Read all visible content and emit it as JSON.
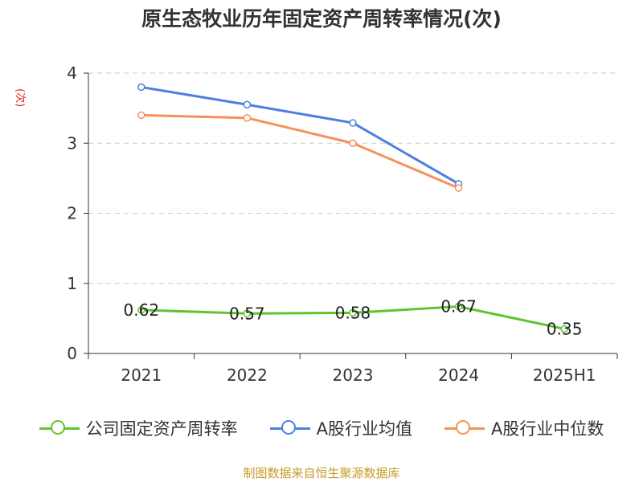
{
  "chart_data": {
    "type": "line",
    "title": "原生态牧业历年固定资产周转率情况(次)",
    "ylabel": "(次)",
    "categories": [
      "2021",
      "2022",
      "2023",
      "2024",
      "2025H1"
    ],
    "ylim": [
      0,
      4
    ],
    "yticks": [
      0,
      1,
      2,
      3,
      4
    ],
    "grid": true,
    "legend_position": "bottom",
    "series": [
      {
        "name": "公司固定资产周转率",
        "color": "#5fc52e",
        "values": [
          0.62,
          0.57,
          0.58,
          0.67,
          0.35
        ],
        "labels": [
          "0.62",
          "0.57",
          "0.58",
          "0.67",
          "0.35"
        ]
      },
      {
        "name": "A股行业均值",
        "color": "#4d7fe0",
        "values": [
          3.8,
          3.55,
          3.29,
          2.42,
          null
        ]
      },
      {
        "name": "A股行业中位数",
        "color": "#f5925a",
        "values": [
          3.4,
          3.36,
          3.0,
          2.36,
          null
        ]
      }
    ]
  },
  "footer": {
    "source": "制图数据来自恒生聚源数据库"
  }
}
